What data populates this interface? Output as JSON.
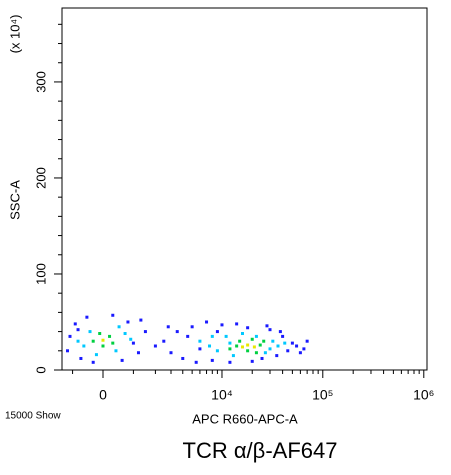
{
  "chart_data": {
    "type": "scatter",
    "x_label": "APC R660-APC-A",
    "y_label": "SSC-A",
    "y_multiplier": "(x 10⁴)",
    "event_count": "15000 Show",
    "caption": "TCR α/β-AF647",
    "xscale": "biexponential",
    "xlim": [
      -1435,
      1076000
    ],
    "xticks": [
      0,
      {
        "value": 10000,
        "label": "10⁴"
      },
      {
        "value": 100000,
        "label": "10⁵"
      },
      {
        "value": 1000000,
        "label": "10⁶"
      }
    ],
    "xminorticks": [
      -1000,
      1000,
      2000,
      3000,
      4000,
      5000,
      6000,
      7000,
      8000,
      9000,
      20000,
      30000,
      40000,
      50000,
      60000,
      70000,
      80000,
      90000,
      200000,
      300000,
      400000,
      500000,
      600000,
      700000,
      800000,
      900000
    ],
    "ylim": [
      0,
      377
    ],
    "yticks": [
      0,
      100,
      200,
      300
    ],
    "yminorticks": [
      20,
      40,
      60,
      80,
      120,
      140,
      160,
      180,
      220,
      240,
      260,
      280,
      320,
      340,
      360
    ],
    "series": [
      {
        "color": "#1a1aff",
        "x": [
          -1200,
          -900,
          -700,
          -500,
          -1100,
          800,
          1200,
          1500,
          1000,
          -300,
          300,
          -800,
          1300,
          600,
          2500,
          3000,
          3500,
          4000,
          4500,
          5000,
          6000,
          7000,
          8000,
          9000,
          12000,
          14000,
          18000,
          25000,
          30000,
          35000,
          40000,
          45000,
          50000,
          55000,
          60000,
          65000,
          70000,
          2000,
          2800,
          5500,
          10000,
          20000,
          28000,
          38000
        ],
        "y": [
          20,
          48,
          12,
          55,
          35,
          50,
          18,
          40,
          28,
          8,
          57,
          42,
          52,
          10,
          30,
          18,
          40,
          12,
          35,
          45,
          22,
          50,
          10,
          40,
          8,
          48,
          44,
          12,
          42,
          15,
          35,
          20,
          28,
          25,
          18,
          22,
          30,
          25,
          45,
          8,
          47,
          9,
          46,
          40
        ]
      },
      {
        "color": "#00c8ff",
        "x": [
          -600,
          -400,
          400,
          700,
          -800,
          500,
          900,
          -200,
          6000,
          7500,
          9000,
          11000,
          13000,
          16000,
          22000,
          27000,
          32000,
          36000,
          42000,
          8000,
          12000,
          30000
        ],
        "y": [
          25,
          40,
          20,
          38,
          30,
          45,
          32,
          16,
          30,
          25,
          20,
          35,
          15,
          38,
          35,
          18,
          30,
          25,
          28,
          35,
          28,
          22
        ]
      },
      {
        "color": "#00d040",
        "x": [
          -300,
          0,
          200,
          -100,
          300,
          12000,
          15000,
          18000,
          20000,
          24000,
          26000,
          14000,
          22000
        ],
        "y": [
          30,
          25,
          35,
          38,
          28,
          22,
          30,
          20,
          32,
          26,
          30,
          25,
          18
        ]
      },
      {
        "color": "#e8e800",
        "x": [
          0,
          18000,
          21000,
          16000
        ],
        "y": [
          31,
          26,
          24,
          24
        ]
      }
    ]
  }
}
